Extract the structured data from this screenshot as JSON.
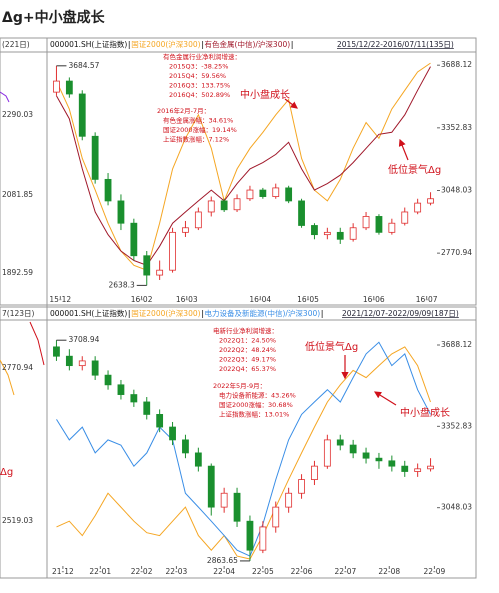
{
  "title": "Δg+中小盘成长",
  "left_panels": [
    {
      "header": "(221日)",
      "labels": [
        "2290.03",
        "2081.85",
        "1892.59"
      ]
    },
    {
      "header": "7(123日)",
      "labels": [
        "2770.94",
        "2519.03"
      ],
      "note": "Δg"
    }
  ],
  "chart_data": [
    {
      "type": "candlestick",
      "name": "000001.SH(上证指数)",
      "date_range": "2015/12/22-2016/07/11(135日)",
      "log_scale": true,
      "xlim": [
        -0.5,
        29.5
      ],
      "ylim": [
        2600,
        3740
      ],
      "yticks": [
        3688.12,
        3352.83,
        3048.03,
        2770.94
      ],
      "xticks": [
        {
          "value": 0.3,
          "label": "15-12"
        },
        {
          "value": 6.6,
          "label": "16-02"
        },
        {
          "value": 10.1,
          "label": "16-03"
        },
        {
          "value": 15.8,
          "label": "16-04"
        },
        {
          "value": 19.5,
          "label": "16-05"
        },
        {
          "value": 24.6,
          "label": "16-06"
        },
        {
          "value": 28.7,
          "label": "16-07"
        }
      ],
      "up_color": "#e03030",
      "down_color": "#1a8f2e",
      "ohlc": {
        "open": [
          3540,
          3600,
          3530,
          3310,
          3100,
          3000,
          2900,
          2760,
          2680,
          2700,
          2860,
          2880,
          2950,
          3000,
          2960,
          3010,
          3050,
          3020,
          3060,
          3000,
          2890,
          2850,
          2860,
          2830,
          2880,
          2930,
          2860,
          2900,
          2950,
          2990
        ],
        "high": [
          3684.57,
          3620,
          3550,
          3330,
          3130,
          3030,
          2920,
          2780,
          2740,
          2880,
          2910,
          2970,
          3020,
          3010,
          3030,
          3070,
          3060,
          3080,
          3070,
          3010,
          2900,
          2880,
          2880,
          2900,
          2950,
          2940,
          2920,
          2970,
          3010,
          3040
        ],
        "low": [
          3520,
          3510,
          3290,
          3080,
          2980,
          2870,
          2740,
          2638.3,
          2660,
          2690,
          2840,
          2870,
          2930,
          2950,
          2950,
          3000,
          3010,
          3010,
          2990,
          2880,
          2830,
          2830,
          2810,
          2820,
          2870,
          2850,
          2850,
          2890,
          2940,
          2980
        ],
        "close": [
          3600,
          3530,
          3310,
          3100,
          3000,
          2900,
          2760,
          2680,
          2700,
          2860,
          2880,
          2950,
          3000,
          2960,
          3010,
          3050,
          3020,
          3060,
          3000,
          2890,
          2850,
          2860,
          2830,
          2880,
          2930,
          2860,
          2900,
          2950,
          2990,
          3010
        ]
      },
      "series": [
        {
          "name": "国证2000(沪深300)",
          "color": "#f5a623",
          "values": [
            3600,
            3450,
            3200,
            3050,
            2900,
            2780,
            2720,
            2700,
            2900,
            3150,
            3300,
            3420,
            3250,
            3000,
            3150,
            3250,
            3330,
            3420,
            3500,
            3200,
            3050,
            3000,
            3100,
            3250,
            3380,
            3300,
            3450,
            3550,
            3650,
            3700
          ]
        },
        {
          "name": "有色金属(中信)/沪深300)",
          "color": "#a0182a",
          "values": [
            3520,
            3400,
            3150,
            2950,
            2850,
            2780,
            2740,
            2720,
            2800,
            2900,
            2950,
            3000,
            3050,
            3000,
            3080,
            3150,
            3180,
            3220,
            3280,
            3150,
            3050,
            3080,
            3120,
            3180,
            3250,
            3320,
            3330,
            3420,
            3550,
            3680
          ]
        }
      ],
      "annotations": {
        "growth": [
          "有色金属行业净利润增速：",
          "2015Q3：-38.25%",
          "2015Q4：59.56%",
          "2016Q3：133.75%",
          "2016Q4：502.89%"
        ],
        "gains": [
          "2016年2月-7月：",
          "有色金属涨幅：34.61%",
          "国证2000涨幅：19.14%",
          "上证指数涨幅：7.12%"
        ],
        "small_cap": "中小盘成长",
        "delta_g": "低位景气Δg"
      }
    },
    {
      "type": "candlestick",
      "name": "000001.SH(上证指数)",
      "date_range": "2021/12/07-2022/09/09(187日)",
      "log_scale": true,
      "xlim": [
        -0.5,
        29.5
      ],
      "ylim": [
        2850,
        3780
      ],
      "yticks": [
        3688.12,
        3352.83,
        3048.03
      ],
      "xticks": [
        {
          "value": 0.5,
          "label": "21-12"
        },
        {
          "value": 3.4,
          "label": "22-01"
        },
        {
          "value": 6.6,
          "label": "22-02"
        },
        {
          "value": 9.3,
          "label": "22-03"
        },
        {
          "value": 13.0,
          "label": "22-04"
        },
        {
          "value": 16.0,
          "label": "22-05"
        },
        {
          "value": 19.0,
          "label": "22-06"
        },
        {
          "value": 22.4,
          "label": "22-07"
        },
        {
          "value": 25.8,
          "label": "22-08"
        },
        {
          "value": 29.3,
          "label": "22-09"
        }
      ],
      "up_color": "#e03030",
      "down_color": "#1a8f2e",
      "ohlc": {
        "open": [
          3680,
          3640,
          3600,
          3620,
          3560,
          3520,
          3480,
          3450,
          3400,
          3350,
          3300,
          3250,
          3200,
          3050,
          3100,
          3000,
          2900,
          2980,
          3050,
          3100,
          3150,
          3200,
          3300,
          3280,
          3250,
          3230,
          3220,
          3200,
          3180,
          3190
        ],
        "high": [
          3708.94,
          3670,
          3640,
          3640,
          3580,
          3540,
          3500,
          3470,
          3420,
          3370,
          3320,
          3270,
          3210,
          3120,
          3120,
          3020,
          3000,
          3070,
          3120,
          3170,
          3220,
          3320,
          3320,
          3300,
          3270,
          3250,
          3240,
          3220,
          3210,
          3230
        ],
        "low": [
          3620,
          3580,
          3580,
          3540,
          3500,
          3460,
          3430,
          3380,
          3330,
          3280,
          3230,
          3180,
          3020,
          3030,
          2980,
          2863.65,
          2890,
          2960,
          3030,
          3080,
          3130,
          3190,
          3260,
          3230,
          3210,
          3190,
          3180,
          3160,
          3160,
          3180
        ],
        "close": [
          3640,
          3600,
          3620,
          3560,
          3520,
          3480,
          3450,
          3400,
          3350,
          3300,
          3250,
          3200,
          3050,
          3100,
          3000,
          2900,
          2980,
          3050,
          3100,
          3150,
          3200,
          3300,
          3280,
          3250,
          3230,
          3220,
          3200,
          3180,
          3190,
          3200
        ]
      },
      "series": [
        {
          "name": "国证2000(沪深300)",
          "color": "#f5a623",
          "values": [
            2980,
            3000,
            2950,
            3020,
            3100,
            3050,
            3000,
            2960,
            2950,
            3000,
            3050,
            2950,
            2900,
            2950,
            2880,
            2870,
            2950,
            3050,
            3150,
            3250,
            3350,
            3450,
            3520,
            3580,
            3550,
            3600,
            3650,
            3680,
            3600,
            3450
          ]
        },
        {
          "name": "电力设备及新能源(中信)/沪深300)",
          "color": "#3a8ee6",
          "values": [
            3380,
            3300,
            3350,
            3250,
            3300,
            3280,
            3200,
            3250,
            3350,
            3300,
            3100,
            3050,
            3000,
            2950,
            2900,
            2880,
            2990,
            3150,
            3300,
            3400,
            3450,
            3500,
            3450,
            3550,
            3650,
            3700,
            3600,
            3650,
            3500,
            3400
          ]
        }
      ],
      "annotations": {
        "growth": [
          "电新行业净利润增速：",
          "2022Q1：24.50%",
          "2022Q2：48.24%",
          "2022Q3：49.17%",
          "2022Q4：65.37%"
        ],
        "gains": [
          "2022年5月-9月：",
          "电力设备新能源：43.26%",
          "国证2000涨幅：30.68%",
          "上证指数涨幅：13.01%"
        ],
        "delta_g": "低位景气Δg",
        "small_cap": "中小盘成长"
      }
    }
  ]
}
